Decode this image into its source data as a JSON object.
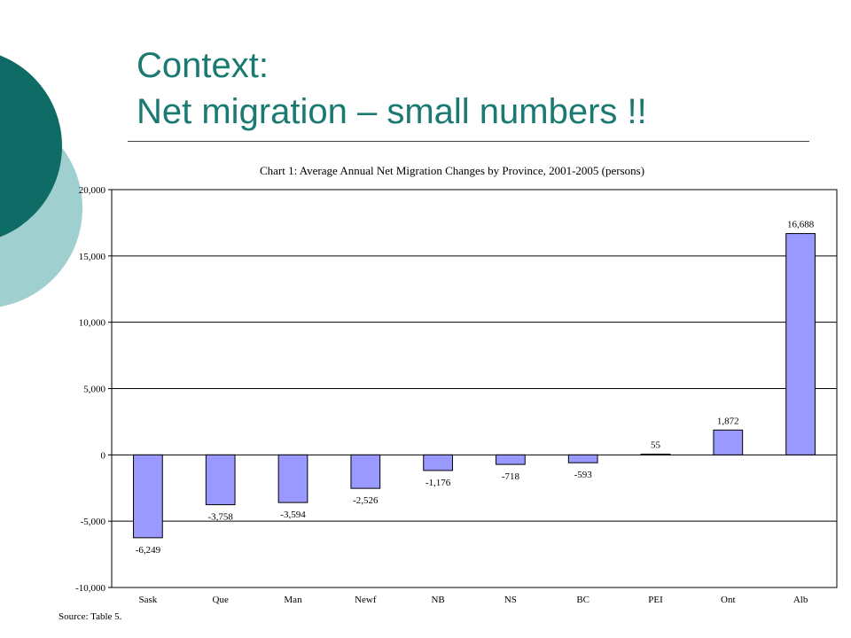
{
  "slide": {
    "title_line1": "Context:",
    "title_line2": "Net migration – small numbers !!"
  },
  "colors": {
    "title": "#1a7a72",
    "circle_dark": "#0f6b66",
    "circle_light": "#9fcfcf",
    "bar_fill": "#9999ff",
    "bar_stroke": "#000000"
  },
  "chart_data": {
    "type": "bar",
    "title": "Chart 1: Average Annual Net Migration Changes by Province, 2001-2005 (persons)",
    "categories": [
      "Sask",
      "Que",
      "Man",
      "Newf",
      "NB",
      "NS",
      "BC",
      "PEI",
      "Ont",
      "Alb"
    ],
    "values": [
      -6249,
      -3758,
      -3594,
      -2526,
      -1176,
      -718,
      -593,
      55,
      1872,
      16688
    ],
    "data_labels": [
      "-6,249",
      "-3,758",
      "-3,594",
      "-2,526",
      "-1,176",
      "-718",
      "-593",
      "55",
      "1,872",
      "16,688"
    ],
    "ylim": [
      -10000,
      20000
    ],
    "yticks": [
      -10000,
      -5000,
      0,
      5000,
      10000,
      15000,
      20000
    ],
    "ytick_labels": [
      "-10,000",
      "-5,000",
      "0",
      "5,000",
      "10,000",
      "15,000",
      "20,000"
    ],
    "grid": true,
    "legend": "none",
    "xlabel": "",
    "ylabel": ""
  },
  "source": "Source: Table 5."
}
